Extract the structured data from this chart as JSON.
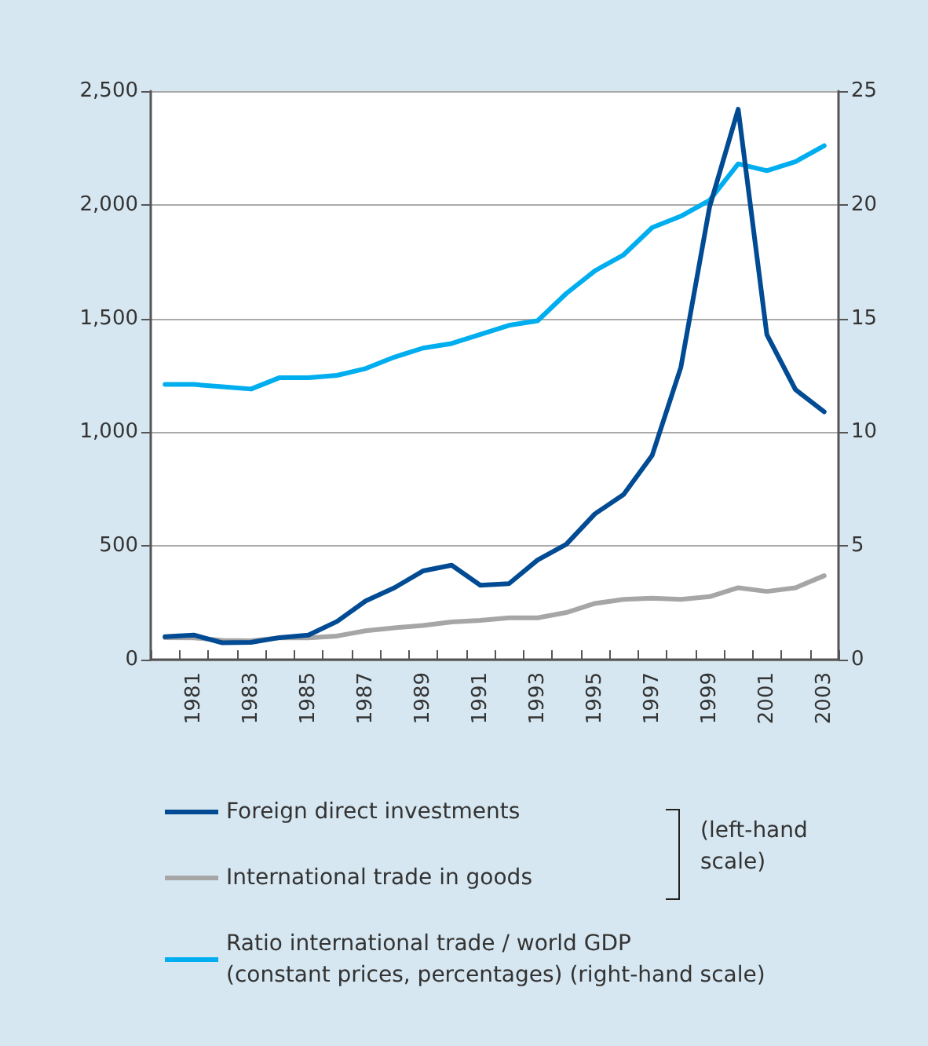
{
  "chart_data": {
    "type": "line",
    "categories": [
      null,
      "1981",
      null,
      "1983",
      null,
      "1985",
      null,
      "1987",
      null,
      "1989",
      null,
      "1991",
      null,
      "1993",
      null,
      "1995",
      null,
      "1997",
      null,
      "1999",
      null,
      "2001",
      null,
      "2003"
    ],
    "series": [
      {
        "name": "Foreign direct investments",
        "color": "#004b93",
        "values": [
          101,
          108,
          74,
          76,
          97,
          108,
          168,
          258,
          316,
          390,
          415,
          327,
          334,
          438,
          507,
          641,
          726,
          899,
          1286,
          1990,
          2420,
          1429,
          1187,
          1090
        ]
      },
      {
        "name": "International trade in goods",
        "color": "#a6a6a6",
        "values": [
          97,
          96,
          85,
          83,
          96,
          96,
          104,
          127,
          140,
          150,
          166,
          173,
          184,
          184,
          207,
          247,
          265,
          270,
          265,
          277,
          316,
          300,
          316,
          369
        ]
      },
      {
        "name": "Ratio international trade / world GDP\n(constant prices, percentages) (right-hand scale)",
        "color": "#00aeef",
        "axis": "y2",
        "values": [
          12.1,
          12.1,
          12.0,
          11.9,
          12.4,
          12.4,
          12.5,
          12.8,
          13.3,
          13.7,
          13.9,
          14.3,
          14.7,
          14.9,
          16.1,
          17.1,
          17.8,
          19.0,
          19.5,
          20.2,
          21.8,
          21.5,
          21.9,
          22.6
        ]
      }
    ],
    "ylim": [
      0,
      2500
    ],
    "yticks": [
      0,
      500,
      {
        "value": 1000,
        "label": "1,000"
      },
      {
        "value": 1500,
        "label": "1,500"
      },
      {
        "value": 2000,
        "label": "2,000"
      },
      {
        "value": 2500,
        "label": "2,500"
      }
    ],
    "y2lim": [
      0,
      25
    ],
    "y2ticks": [
      0,
      5,
      10,
      15,
      20,
      25
    ],
    "grid": "y",
    "legend": "bottom",
    "marker": "none",
    "line_style": "solid",
    "annotations": [
      "(left-hand scale)"
    ]
  }
}
